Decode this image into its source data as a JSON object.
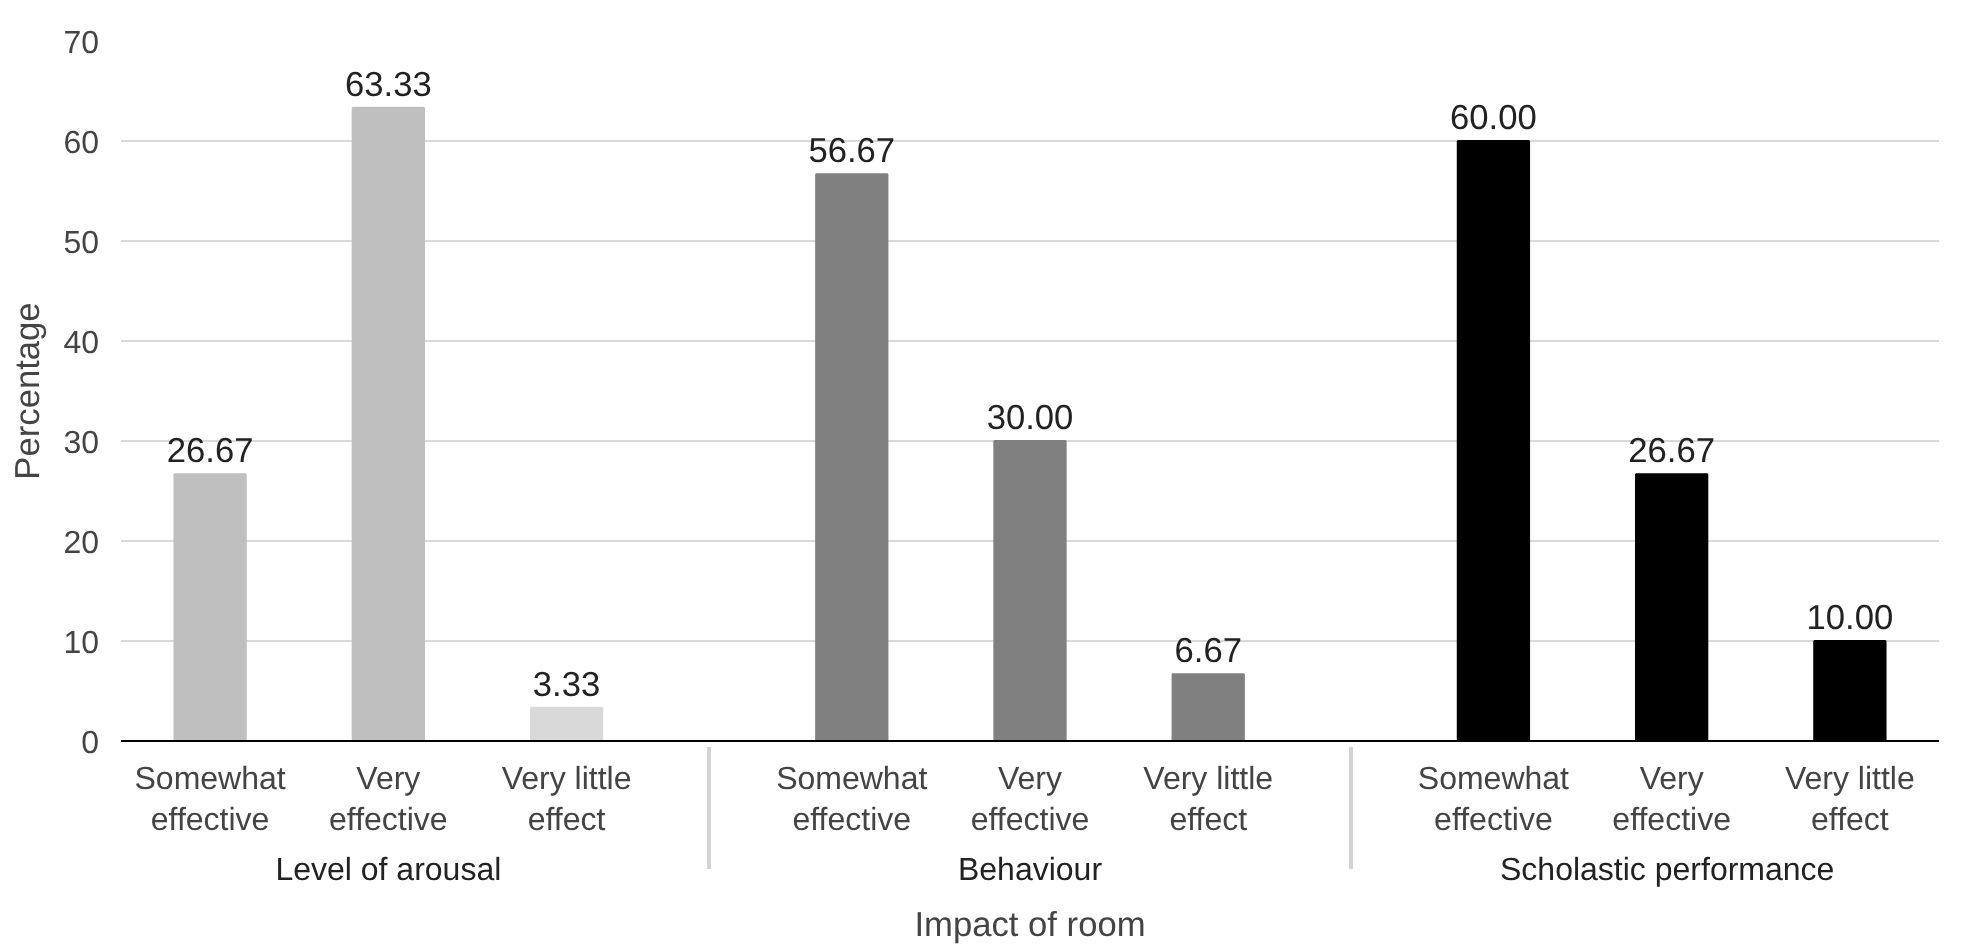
{
  "chart_data": {
    "type": "bar",
    "xlabel": "Impact of room",
    "ylabel": "Percentage",
    "categories": [
      "Somewhat effective",
      "Very effective",
      "Very little effect",
      "Somewhat effective",
      "Very effective",
      "Very little effect",
      "Somewhat effective",
      "Very effective",
      "Very little effect"
    ],
    "values": [
      26.67,
      63.33,
      3.33,
      56.67,
      30.0,
      6.67,
      60.0,
      26.67,
      10.0
    ],
    "value_labels": [
      "26.67",
      "63.33",
      "3.33",
      "56.67",
      "30.00",
      "6.67",
      "60.00",
      "26.67",
      "10.00"
    ],
    "colors": [
      "#bfbfbf",
      "#bfbfbf",
      "#d9d9d9",
      "#808080",
      "#808080",
      "#808080",
      "#000000",
      "#000000",
      "#000000"
    ],
    "annotations": [
      "Level of arousal",
      "Behaviour",
      "Scholastic  performance"
    ],
    "ylim": [
      0,
      70
    ],
    "yticks": [
      0,
      10,
      20,
      30,
      40,
      50,
      60,
      70
    ],
    "grid": "y"
  }
}
